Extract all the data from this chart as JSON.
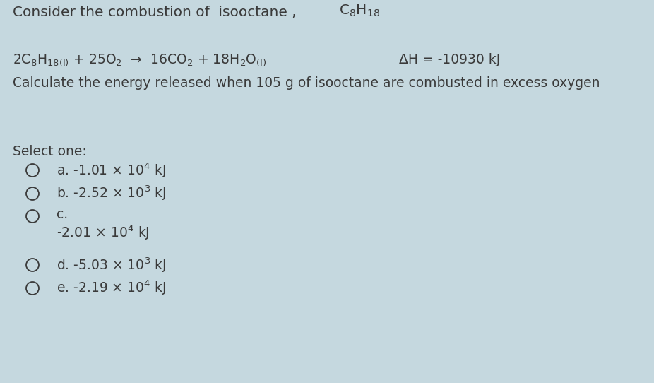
{
  "background_color": "#c5d8df",
  "text_color": "#3a3a3a",
  "font_size_title": 14.5,
  "font_size_eq": 13.5,
  "font_size_opt": 13.5,
  "title_prefix": "Consider the combustion of  isooctane ,",
  "delta_h": "ΔH = -10930 kJ",
  "question": "Calculate the energy released when 105 g of isooctane are combusted in excess oxygen",
  "select_one": "Select one:",
  "opt_a_main": "a. -1.01 × 10",
  "opt_a_exp": "4",
  "opt_a_suffix": " kJ",
  "opt_b_main": "b. -2.52 × 10",
  "opt_b_exp": "3",
  "opt_b_suffix": " kJ",
  "opt_c_label": "c.",
  "opt_c_main": "-2.01 × 10",
  "opt_c_exp": "4",
  "opt_c_suffix": " kJ",
  "opt_d_main": "d. -5.03 × 10",
  "opt_d_exp": "3",
  "opt_d_suffix": " kJ",
  "opt_e_main": "e. -2.19 × 10",
  "opt_e_exp": "4",
  "opt_e_suffix": " kJ"
}
